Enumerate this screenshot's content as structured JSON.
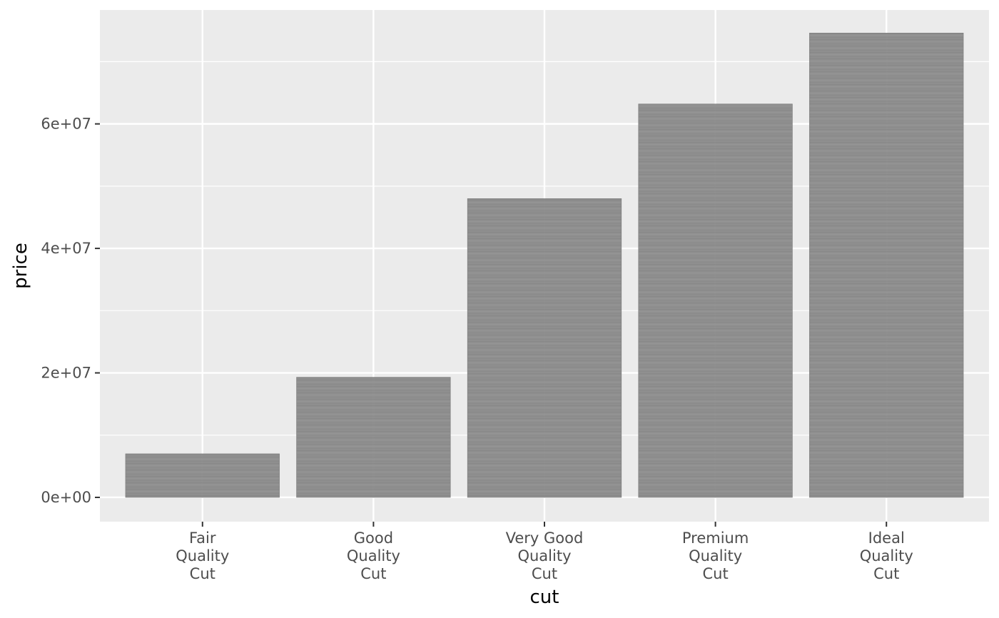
{
  "chart_data": {
    "type": "bar",
    "title": "",
    "xlabel": "cut",
    "ylabel": "price",
    "categories": [
      [
        "Fair",
        "Quality",
        "Cut"
      ],
      [
        "Good",
        "Quality",
        "Cut"
      ],
      [
        "Very Good",
        "Quality",
        "Cut"
      ],
      [
        "Premium",
        "Quality",
        "Cut"
      ],
      [
        "Ideal",
        "Quality",
        "Cut"
      ]
    ],
    "values": [
      7000000,
      19300000,
      48000000,
      63200000,
      74600000
    ],
    "yticks": [
      0,
      20000000,
      40000000,
      60000000
    ],
    "ytick_labels": [
      "0e+00",
      "2e+07",
      "4e+07",
      "6e+07"
    ],
    "ylim": [
      -3900000,
      78300000
    ],
    "grid": true,
    "colors": {
      "panel_background": "#ebebeb",
      "grid": "#ffffff",
      "bar_fill": "#8c8c8c",
      "tick_text": "#4d4d4d"
    }
  }
}
